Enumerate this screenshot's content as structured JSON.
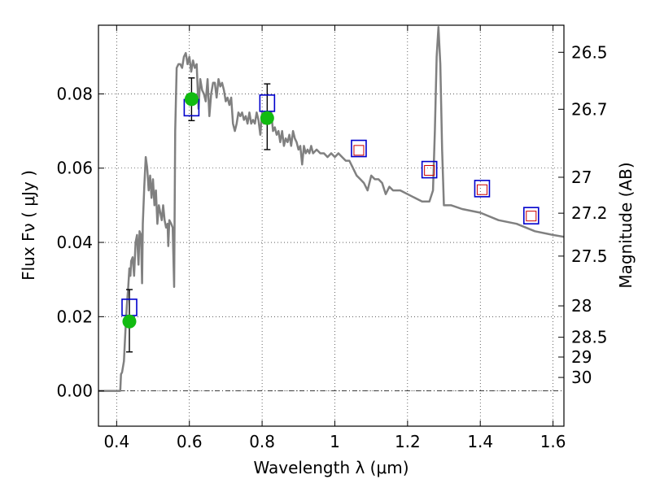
{
  "chart_data": {
    "type": "scatter",
    "xlabel": "Wavelength  λ (μm)",
    "ylabel": "Flux  Fν  ( μJy )",
    "ylabel_right": "Magnitude (AB)",
    "xlim": [
      0.35,
      1.63
    ],
    "ylim": [
      -0.0095,
      0.0985
    ],
    "x_ticks": [
      {
        "value": 0.4,
        "label": "0.4"
      },
      {
        "value": 0.6,
        "label": "0.6"
      },
      {
        "value": 0.8,
        "label": "0.8"
      },
      {
        "value": 1.0,
        "label": "1"
      },
      {
        "value": 1.2,
        "label": "1.2"
      },
      {
        "value": 1.4,
        "label": "1.4"
      },
      {
        "value": 1.6,
        "label": "1.6"
      }
    ],
    "y_ticks": [
      {
        "value": 0.0,
        "label": "0.00"
      },
      {
        "value": 0.02,
        "label": "0.02"
      },
      {
        "value": 0.04,
        "label": "0.04"
      },
      {
        "value": 0.06,
        "label": "0.06"
      },
      {
        "value": 0.08,
        "label": "0.08"
      }
    ],
    "mag_ticks": [
      {
        "value": 26.5,
        "label": "26.5"
      },
      {
        "value": 26.7,
        "label": "26.7"
      },
      {
        "value": 27.0,
        "label": "27"
      },
      {
        "value": 27.2,
        "label": "27.2"
      },
      {
        "value": 27.5,
        "label": "27.5"
      },
      {
        "value": 28.0,
        "label": "28"
      },
      {
        "value": 28.5,
        "label": "28.5"
      },
      {
        "value": 29.0,
        "label": "29"
      },
      {
        "value": 30.0,
        "label": "30"
      }
    ],
    "grid": true,
    "colors": {
      "sed": "#808080",
      "observed": "#11bb11",
      "model_box": "#0000cc",
      "model_inner": "#cc0000",
      "errorbar": "#000000"
    },
    "series": [
      {
        "kind": "line",
        "points": [
          [
            0.35,
            0.0
          ],
          [
            0.41,
            0.0
          ],
          [
            0.412,
            0.0045
          ],
          [
            0.415,
            0.005
          ],
          [
            0.42,
            0.008
          ],
          [
            0.424,
            0.016
          ],
          [
            0.428,
            0.023
          ],
          [
            0.432,
            0.028
          ],
          [
            0.435,
            0.033
          ],
          [
            0.438,
            0.031
          ],
          [
            0.44,
            0.035
          ],
          [
            0.444,
            0.036
          ],
          [
            0.448,
            0.031
          ],
          [
            0.452,
            0.04
          ],
          [
            0.456,
            0.042
          ],
          [
            0.46,
            0.034
          ],
          [
            0.463,
            0.043
          ],
          [
            0.467,
            0.042
          ],
          [
            0.47,
            0.029
          ],
          [
            0.472,
            0.045
          ],
          [
            0.476,
            0.055
          ],
          [
            0.48,
            0.063
          ],
          [
            0.484,
            0.06
          ],
          [
            0.488,
            0.054
          ],
          [
            0.492,
            0.058
          ],
          [
            0.496,
            0.052
          ],
          [
            0.5,
            0.057
          ],
          [
            0.504,
            0.05
          ],
          [
            0.508,
            0.054
          ],
          [
            0.512,
            0.045
          ],
          [
            0.516,
            0.05
          ],
          [
            0.52,
            0.048
          ],
          [
            0.524,
            0.046
          ],
          [
            0.528,
            0.05
          ],
          [
            0.532,
            0.046
          ],
          [
            0.536,
            0.044
          ],
          [
            0.54,
            0.045
          ],
          [
            0.542,
            0.039
          ],
          [
            0.545,
            0.046
          ],
          [
            0.55,
            0.045
          ],
          [
            0.554,
            0.044
          ],
          [
            0.558,
            0.028
          ],
          [
            0.561,
            0.07
          ],
          [
            0.565,
            0.087
          ],
          [
            0.57,
            0.088
          ],
          [
            0.575,
            0.088
          ],
          [
            0.58,
            0.087
          ],
          [
            0.585,
            0.09
          ],
          [
            0.59,
            0.091
          ],
          [
            0.595,
            0.088
          ],
          [
            0.6,
            0.09
          ],
          [
            0.605,
            0.086
          ],
          [
            0.61,
            0.089
          ],
          [
            0.615,
            0.087
          ],
          [
            0.62,
            0.088
          ],
          [
            0.625,
            0.076
          ],
          [
            0.63,
            0.084
          ],
          [
            0.635,
            0.081
          ],
          [
            0.64,
            0.08
          ],
          [
            0.645,
            0.078
          ],
          [
            0.65,
            0.084
          ],
          [
            0.655,
            0.074
          ],
          [
            0.66,
            0.08
          ],
          [
            0.665,
            0.083
          ],
          [
            0.67,
            0.083
          ],
          [
            0.675,
            0.079
          ],
          [
            0.68,
            0.084
          ],
          [
            0.685,
            0.082
          ],
          [
            0.69,
            0.083
          ],
          [
            0.695,
            0.081
          ],
          [
            0.7,
            0.078
          ],
          [
            0.705,
            0.079
          ],
          [
            0.71,
            0.077
          ],
          [
            0.715,
            0.079
          ],
          [
            0.72,
            0.072
          ],
          [
            0.725,
            0.07
          ],
          [
            0.73,
            0.072
          ],
          [
            0.735,
            0.075
          ],
          [
            0.74,
            0.074
          ],
          [
            0.745,
            0.075
          ],
          [
            0.75,
            0.073
          ],
          [
            0.755,
            0.074
          ],
          [
            0.76,
            0.072
          ],
          [
            0.765,
            0.075
          ],
          [
            0.77,
            0.072
          ],
          [
            0.775,
            0.073
          ],
          [
            0.78,
            0.072
          ],
          [
            0.785,
            0.075
          ],
          [
            0.79,
            0.073
          ],
          [
            0.795,
            0.069
          ],
          [
            0.8,
            0.075
          ],
          [
            0.805,
            0.072
          ],
          [
            0.81,
            0.074
          ],
          [
            0.815,
            0.074
          ],
          [
            0.82,
            0.072
          ],
          [
            0.825,
            0.075
          ],
          [
            0.83,
            0.07
          ],
          [
            0.835,
            0.071
          ],
          [
            0.84,
            0.069
          ],
          [
            0.845,
            0.07
          ],
          [
            0.85,
            0.067
          ],
          [
            0.855,
            0.07
          ],
          [
            0.86,
            0.066
          ],
          [
            0.865,
            0.068
          ],
          [
            0.87,
            0.067
          ],
          [
            0.875,
            0.069
          ],
          [
            0.88,
            0.066
          ],
          [
            0.885,
            0.07
          ],
          [
            0.89,
            0.068
          ],
          [
            0.895,
            0.067
          ],
          [
            0.9,
            0.065
          ],
          [
            0.905,
            0.066
          ],
          [
            0.91,
            0.061
          ],
          [
            0.915,
            0.066
          ],
          [
            0.92,
            0.064
          ],
          [
            0.925,
            0.065
          ],
          [
            0.93,
            0.064
          ],
          [
            0.935,
            0.066
          ],
          [
            0.94,
            0.064
          ],
          [
            0.95,
            0.065
          ],
          [
            0.96,
            0.064
          ],
          [
            0.97,
            0.064
          ],
          [
            0.98,
            0.063
          ],
          [
            0.99,
            0.064
          ],
          [
            1.0,
            0.063
          ],
          [
            1.01,
            0.064
          ],
          [
            1.02,
            0.063
          ],
          [
            1.03,
            0.062
          ],
          [
            1.04,
            0.062
          ],
          [
            1.05,
            0.06
          ],
          [
            1.06,
            0.058
          ],
          [
            1.07,
            0.057
          ],
          [
            1.08,
            0.056
          ],
          [
            1.09,
            0.054
          ],
          [
            1.1,
            0.058
          ],
          [
            1.11,
            0.057
          ],
          [
            1.12,
            0.057
          ],
          [
            1.13,
            0.056
          ],
          [
            1.14,
            0.053
          ],
          [
            1.15,
            0.055
          ],
          [
            1.16,
            0.054
          ],
          [
            1.18,
            0.054
          ],
          [
            1.2,
            0.053
          ],
          [
            1.22,
            0.052
          ],
          [
            1.24,
            0.051
          ],
          [
            1.26,
            0.051
          ],
          [
            1.27,
            0.054
          ],
          [
            1.275,
            0.07
          ],
          [
            1.28,
            0.09
          ],
          [
            1.285,
            0.098
          ],
          [
            1.29,
            0.088
          ],
          [
            1.295,
            0.065
          ],
          [
            1.3,
            0.05
          ],
          [
            1.32,
            0.05
          ],
          [
            1.35,
            0.049
          ],
          [
            1.4,
            0.048
          ],
          [
            1.45,
            0.046
          ],
          [
            1.5,
            0.045
          ],
          [
            1.55,
            0.043
          ],
          [
            1.6,
            0.042
          ],
          [
            1.63,
            0.0415
          ]
        ]
      },
      {
        "kind": "observed",
        "points": [
          {
            "x": 0.435,
            "y": 0.0187,
            "yerr_low": 0.0105,
            "yerr_high": 0.0273
          },
          {
            "x": 0.606,
            "y": 0.0786,
            "yerr_low": 0.0728,
            "yerr_high": 0.0843
          },
          {
            "x": 0.814,
            "y": 0.0735,
            "yerr_low": 0.065,
            "yerr_high": 0.0827
          }
        ]
      },
      {
        "kind": "model_box",
        "points": [
          {
            "x": 0.435,
            "y": 0.0225
          },
          {
            "x": 0.606,
            "y": 0.0763
          },
          {
            "x": 0.814,
            "y": 0.0775
          },
          {
            "x": 1.066,
            "y": 0.0653
          },
          {
            "x": 1.26,
            "y": 0.0596
          },
          {
            "x": 1.405,
            "y": 0.0545
          },
          {
            "x": 1.54,
            "y": 0.0472
          }
        ]
      },
      {
        "kind": "model_inner",
        "points": [
          {
            "x": 1.066,
            "y": 0.0648
          },
          {
            "x": 1.26,
            "y": 0.0594
          },
          {
            "x": 1.405,
            "y": 0.0542
          },
          {
            "x": 1.54,
            "y": 0.0471
          }
        ]
      }
    ]
  }
}
